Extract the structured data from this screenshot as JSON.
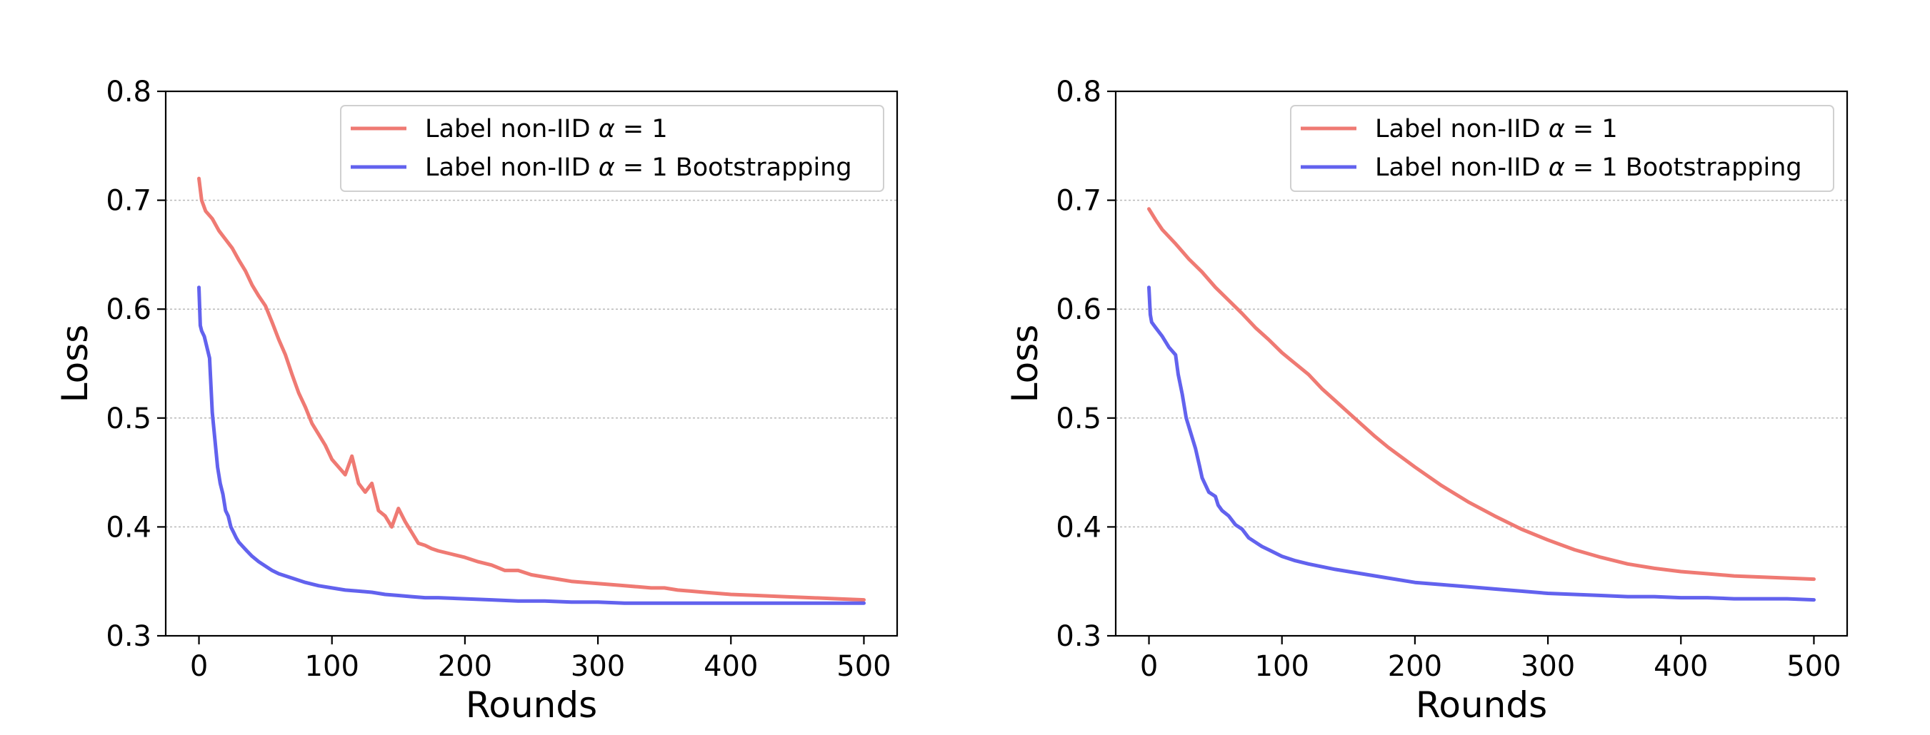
{
  "chart_data": [
    {
      "type": "line",
      "title": "",
      "xlabel": "Rounds",
      "ylabel": "Loss",
      "xlim": [
        -25,
        525
      ],
      "ylim": [
        0.3,
        0.8
      ],
      "xticks": [
        0,
        100,
        200,
        300,
        400,
        500
      ],
      "xtick_labels": [
        "0",
        "100",
        "200",
        "300",
        "400",
        "500"
      ],
      "yticks": [
        0.3,
        0.4,
        0.5,
        0.6,
        0.7,
        0.8
      ],
      "ytick_labels": [
        "0.3",
        "0.4",
        "0.5",
        "0.6",
        "0.7",
        "0.8"
      ],
      "grid": "horizontal dotted",
      "legend_position": "upper right",
      "series": [
        {
          "name": "Label non-IID α = 1",
          "legend_main": "Label non-IID ",
          "legend_math": "α",
          "legend_rest": " = 1",
          "color": "#ef7a73",
          "x": [
            0,
            2,
            5,
            10,
            15,
            20,
            25,
            30,
            35,
            40,
            45,
            50,
            55,
            60,
            65,
            70,
            75,
            80,
            85,
            90,
            95,
            100,
            105,
            110,
            115,
            120,
            125,
            130,
            135,
            140,
            145,
            150,
            155,
            160,
            165,
            170,
            175,
            180,
            190,
            200,
            210,
            220,
            230,
            240,
            250,
            260,
            270,
            280,
            290,
            300,
            310,
            320,
            330,
            340,
            350,
            360,
            370,
            380,
            390,
            400,
            420,
            440,
            460,
            480,
            500
          ],
          "y": [
            0.72,
            0.7,
            0.69,
            0.683,
            0.672,
            0.664,
            0.656,
            0.645,
            0.635,
            0.622,
            0.612,
            0.603,
            0.588,
            0.572,
            0.558,
            0.54,
            0.523,
            0.51,
            0.495,
            0.485,
            0.475,
            0.462,
            0.455,
            0.448,
            0.465,
            0.44,
            0.432,
            0.44,
            0.415,
            0.41,
            0.4,
            0.417,
            0.405,
            0.395,
            0.385,
            0.383,
            0.38,
            0.378,
            0.375,
            0.372,
            0.368,
            0.365,
            0.36,
            0.36,
            0.356,
            0.354,
            0.352,
            0.35,
            0.349,
            0.348,
            0.347,
            0.346,
            0.345,
            0.344,
            0.344,
            0.342,
            0.341,
            0.34,
            0.339,
            0.338,
            0.337,
            0.336,
            0.335,
            0.334,
            0.333
          ]
        },
        {
          "name": "Label non-IID α = 1 Bootstrapping",
          "legend_main": "Label non-IID ",
          "legend_math": "α",
          "legend_rest": " = 1 Bootstrapping",
          "color": "#6262ee",
          "x": [
            0,
            1,
            2,
            4,
            6,
            8,
            10,
            12,
            14,
            16,
            18,
            20,
            22,
            24,
            26,
            28,
            30,
            33,
            36,
            40,
            45,
            50,
            55,
            60,
            70,
            80,
            90,
            100,
            110,
            120,
            130,
            140,
            150,
            160,
            170,
            180,
            200,
            220,
            240,
            260,
            280,
            300,
            320,
            340,
            360,
            380,
            400,
            420,
            440,
            460,
            480,
            500
          ],
          "y": [
            0.62,
            0.585,
            0.58,
            0.575,
            0.565,
            0.555,
            0.505,
            0.48,
            0.455,
            0.44,
            0.43,
            0.415,
            0.41,
            0.4,
            0.395,
            0.39,
            0.386,
            0.382,
            0.378,
            0.373,
            0.368,
            0.364,
            0.36,
            0.357,
            0.353,
            0.349,
            0.346,
            0.344,
            0.342,
            0.341,
            0.34,
            0.338,
            0.337,
            0.336,
            0.335,
            0.335,
            0.334,
            0.333,
            0.332,
            0.332,
            0.331,
            0.331,
            0.33,
            0.33,
            0.33,
            0.33,
            0.33,
            0.33,
            0.33,
            0.33,
            0.33,
            0.33
          ]
        }
      ]
    },
    {
      "type": "line",
      "title": "",
      "xlabel": "Rounds",
      "ylabel": "Loss",
      "xlim": [
        -25,
        525
      ],
      "ylim": [
        0.3,
        0.8
      ],
      "xticks": [
        0,
        100,
        200,
        300,
        400,
        500
      ],
      "xtick_labels": [
        "0",
        "100",
        "200",
        "300",
        "400",
        "500"
      ],
      "yticks": [
        0.3,
        0.4,
        0.5,
        0.6,
        0.7,
        0.8
      ],
      "ytick_labels": [
        "0.3",
        "0.4",
        "0.5",
        "0.6",
        "0.7",
        "0.8"
      ],
      "grid": "horizontal dotted",
      "legend_position": "upper right",
      "series": [
        {
          "name": "Label non-IID α = 1",
          "legend_main": "Label non-IID ",
          "legend_math": "α",
          "legend_rest": " = 1",
          "color": "#ef7a73",
          "x": [
            0,
            5,
            10,
            20,
            30,
            40,
            50,
            60,
            70,
            80,
            90,
            100,
            110,
            120,
            130,
            140,
            150,
            160,
            170,
            180,
            200,
            220,
            240,
            260,
            280,
            300,
            320,
            340,
            360,
            380,
            400,
            420,
            440,
            460,
            480,
            500
          ],
          "y": [
            0.692,
            0.682,
            0.673,
            0.66,
            0.646,
            0.634,
            0.62,
            0.608,
            0.596,
            0.583,
            0.572,
            0.56,
            0.55,
            0.54,
            0.527,
            0.516,
            0.505,
            0.494,
            0.483,
            0.473,
            0.455,
            0.438,
            0.423,
            0.41,
            0.398,
            0.388,
            0.379,
            0.372,
            0.366,
            0.362,
            0.359,
            0.357,
            0.355,
            0.354,
            0.353,
            0.352
          ]
        },
        {
          "name": "Label non-IID α = 1 Bootstrapping",
          "legend_main": "Label non-IID ",
          "legend_math": "α",
          "legend_rest": " = 1 Bootstrapping",
          "color": "#6262ee",
          "x": [
            0,
            1,
            2,
            5,
            10,
            15,
            20,
            22,
            25,
            28,
            30,
            35,
            38,
            40,
            45,
            50,
            52,
            55,
            60,
            65,
            70,
            75,
            80,
            85,
            90,
            95,
            100,
            110,
            120,
            140,
            160,
            180,
            200,
            220,
            240,
            260,
            280,
            300,
            320,
            340,
            360,
            380,
            400,
            420,
            440,
            460,
            480,
            500
          ],
          "y": [
            0.62,
            0.595,
            0.588,
            0.583,
            0.575,
            0.565,
            0.558,
            0.54,
            0.522,
            0.5,
            0.492,
            0.472,
            0.456,
            0.445,
            0.432,
            0.428,
            0.42,
            0.415,
            0.41,
            0.402,
            0.398,
            0.39,
            0.386,
            0.382,
            0.379,
            0.376,
            0.373,
            0.369,
            0.366,
            0.361,
            0.357,
            0.353,
            0.349,
            0.347,
            0.345,
            0.343,
            0.341,
            0.339,
            0.338,
            0.337,
            0.336,
            0.336,
            0.335,
            0.335,
            0.334,
            0.334,
            0.334,
            0.333
          ]
        }
      ]
    }
  ]
}
